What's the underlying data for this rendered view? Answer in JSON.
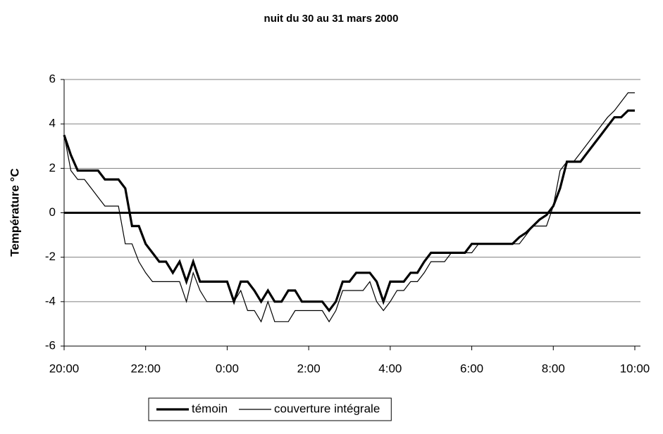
{
  "chart_data": {
    "type": "line",
    "title": "nuit du 30 au 31 mars 2000",
    "y_label": "Température °C",
    "x": [
      0,
      10,
      20,
      30,
      40,
      50,
      60,
      70,
      80,
      90,
      100,
      110,
      120,
      130,
      140,
      150,
      160,
      170,
      180,
      190,
      200,
      210,
      220,
      230,
      240,
      250,
      260,
      270,
      280,
      290,
      300,
      310,
      320,
      330,
      340,
      350,
      360,
      370,
      380,
      390,
      400,
      410,
      420,
      430,
      440,
      450,
      460,
      470,
      480,
      490,
      500,
      510,
      520,
      530,
      540,
      550,
      560,
      570,
      580,
      590,
      600,
      610,
      620,
      630,
      640,
      650,
      660,
      670,
      680,
      690,
      700,
      710,
      720,
      730,
      740,
      750,
      760,
      770,
      780,
      790,
      800,
      810,
      820,
      830,
      840
    ],
    "series": [
      {
        "name": "témoin",
        "color": "#000000",
        "width": 3.2,
        "values": [
          3.5,
          2.6,
          1.9,
          1.9,
          1.9,
          1.9,
          1.5,
          1.5,
          1.5,
          1.1,
          -0.6,
          -0.6,
          -1.4,
          -1.8,
          -2.2,
          -2.2,
          -2.7,
          -2.2,
          -3.1,
          -2.2,
          -3.1,
          -3.1,
          -3.1,
          -3.1,
          -3.1,
          -4.0,
          -3.1,
          -3.1,
          -3.5,
          -4.0,
          -3.5,
          -4.0,
          -4.0,
          -3.5,
          -3.5,
          -4.0,
          -4.0,
          -4.0,
          -4.0,
          -4.4,
          -4.0,
          -3.1,
          -3.1,
          -2.7,
          -2.7,
          -2.7,
          -3.1,
          -4.0,
          -3.1,
          -3.1,
          -3.1,
          -2.7,
          -2.7,
          -2.2,
          -1.8,
          -1.8,
          -1.8,
          -1.8,
          -1.8,
          -1.8,
          -1.4,
          -1.4,
          -1.4,
          -1.4,
          -1.4,
          -1.4,
          -1.4,
          -1.1,
          -0.9,
          -0.6,
          -0.3,
          -0.1,
          0.3,
          1.1,
          2.3,
          2.3,
          2.3,
          2.7,
          3.1,
          3.5,
          3.9,
          4.3,
          4.3,
          4.6,
          4.6
        ]
      },
      {
        "name": "couverture intégrale",
        "color": "#000000",
        "width": 1.2,
        "values": [
          3.5,
          1.9,
          1.5,
          1.5,
          1.1,
          0.7,
          0.3,
          0.3,
          0.3,
          -1.4,
          -1.4,
          -2.2,
          -2.7,
          -3.1,
          -3.1,
          -3.1,
          -3.1,
          -3.1,
          -4.0,
          -2.7,
          -3.5,
          -4.0,
          -4.0,
          -4.0,
          -4.0,
          -4.0,
          -3.5,
          -4.4,
          -4.4,
          -4.9,
          -4.0,
          -4.9,
          -4.9,
          -4.9,
          -4.4,
          -4.4,
          -4.4,
          -4.4,
          -4.4,
          -4.9,
          -4.4,
          -3.5,
          -3.5,
          -3.5,
          -3.5,
          -3.1,
          -4.0,
          -4.4,
          -4.0,
          -3.5,
          -3.5,
          -3.1,
          -3.1,
          -2.7,
          -2.2,
          -2.2,
          -2.2,
          -1.8,
          -1.8,
          -1.8,
          -1.8,
          -1.4,
          -1.4,
          -1.4,
          -1.4,
          -1.4,
          -1.4,
          -1.4,
          -1.0,
          -0.6,
          -0.6,
          -0.6,
          0.3,
          1.9,
          2.3,
          2.3,
          2.7,
          3.1,
          3.5,
          3.9,
          4.3,
          4.6,
          5.0,
          5.4,
          5.4
        ]
      }
    ],
    "xlim": [
      0,
      840
    ],
    "xticks": [
      {
        "value": 0,
        "label": "20:00"
      },
      {
        "value": 120,
        "label": "22:00"
      },
      {
        "value": 240,
        "label": "0:00"
      },
      {
        "value": 360,
        "label": "2:00"
      },
      {
        "value": 480,
        "label": "4:00"
      },
      {
        "value": 600,
        "label": "6:00"
      },
      {
        "value": 720,
        "label": "8:00"
      },
      {
        "value": 840,
        "label": "10:00"
      }
    ],
    "ylim": [
      -6,
      6
    ],
    "yticks": [
      -6,
      -4,
      -2,
      0,
      2,
      4,
      6
    ],
    "grid": true,
    "legend": "bottom"
  }
}
